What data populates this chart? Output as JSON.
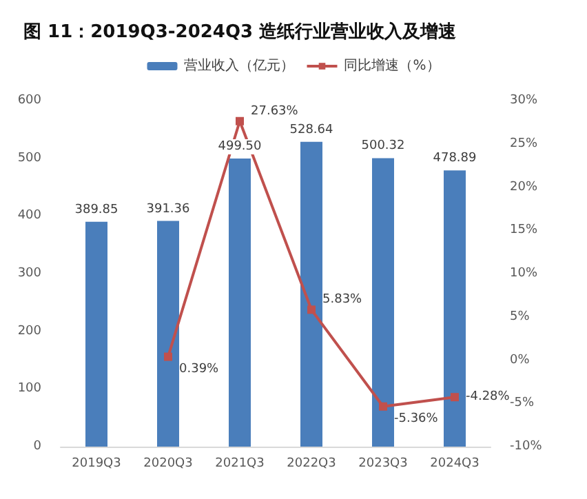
{
  "chart_data": {
    "type": "bar",
    "title": "图 11：2019Q3-2024Q3 造纸行业营业收入及增速",
    "categories": [
      "2019Q3",
      "2020Q3",
      "2021Q3",
      "2022Q3",
      "2023Q3",
      "2024Q3"
    ],
    "series": [
      {
        "name": "营业收入（亿元）",
        "color": "#4a7ebb",
        "values": [
          389.85,
          391.36,
          499.5,
          528.64,
          500.32,
          478.89
        ],
        "value_labels": [
          "389.85",
          "391.36",
          "499.50",
          "528.64",
          "500.32",
          "478.89"
        ]
      },
      {
        "name": "同比增速（%）",
        "type": "line",
        "axis": "y2",
        "color": "#c0504d",
        "values": [
          null,
          0.39,
          27.63,
          5.83,
          -5.36,
          -4.28
        ],
        "value_labels": [
          null,
          "0.39%",
          "27.63%",
          "5.83%",
          "-5.36%",
          "-4.28%"
        ]
      }
    ],
    "ylim": [
      0,
      600
    ],
    "yticks": [
      0,
      100,
      200,
      300,
      400,
      500,
      600
    ],
    "y2lim": [
      -10,
      30
    ],
    "y2ticks": [
      {
        "value": -10,
        "label": "-10%"
      },
      {
        "value": -5,
        "label": "-5%"
      },
      {
        "value": 0,
        "label": "0%"
      },
      {
        "value": 5,
        "label": "5%"
      },
      {
        "value": 10,
        "label": "10%"
      },
      {
        "value": 15,
        "label": "15%"
      },
      {
        "value": 20,
        "label": "20%"
      },
      {
        "value": 25,
        "label": "25%"
      },
      {
        "value": 30,
        "label": "30%"
      }
    ],
    "legend": "top",
    "grid": false,
    "marker": "square"
  }
}
